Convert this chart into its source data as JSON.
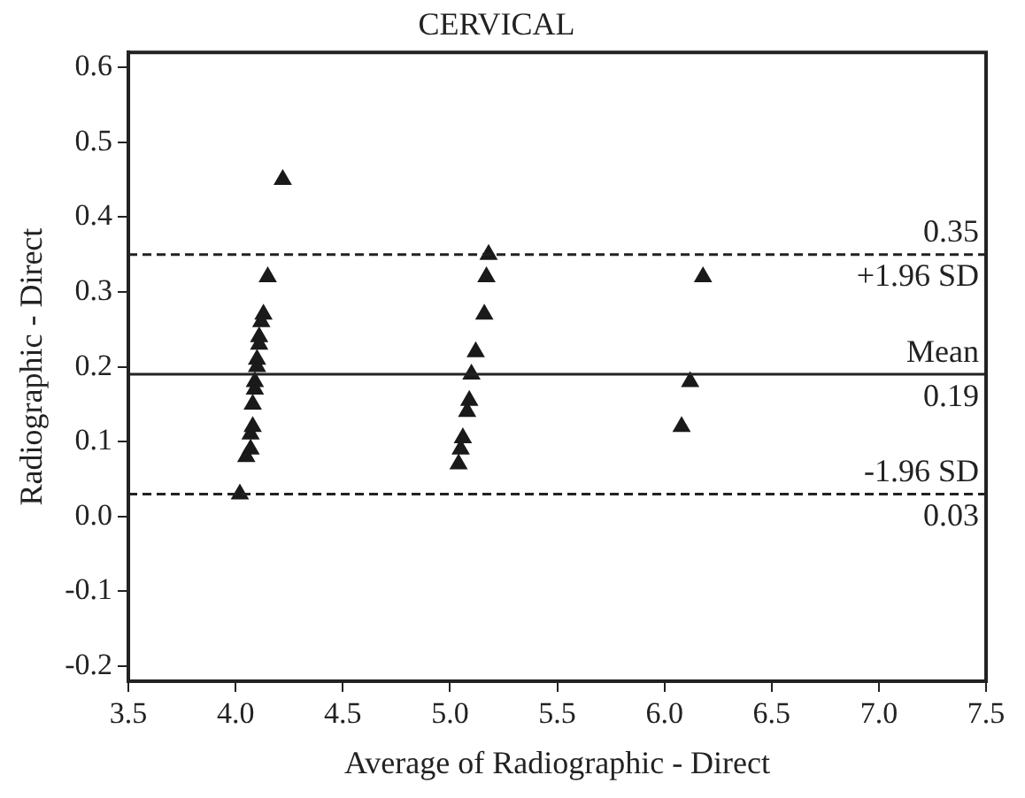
{
  "chart_data": {
    "type": "scatter",
    "title": "CERVICAL",
    "xlabel": "Average of Radiographic - Direct",
    "ylabel": "Radiographic - Direct",
    "series": [
      {
        "color": "#1a1a1a",
        "x": [
          4.22,
          4.15,
          4.13,
          4.12,
          4.11,
          4.11,
          4.1,
          4.1,
          4.09,
          4.09,
          4.08,
          4.08,
          4.07,
          4.07,
          4.05,
          4.02,
          5.18,
          5.17,
          5.16,
          5.12,
          5.1,
          5.09,
          5.08,
          5.06,
          5.05,
          5.04,
          6.18,
          6.12,
          6.08
        ],
        "values": [
          0.45,
          0.32,
          0.27,
          0.26,
          0.24,
          0.23,
          0.21,
          0.2,
          0.18,
          0.17,
          0.15,
          0.12,
          0.11,
          0.09,
          0.08,
          0.03,
          0.35,
          0.32,
          0.27,
          0.22,
          0.19,
          0.155,
          0.14,
          0.105,
          0.09,
          0.07,
          0.32,
          0.18,
          0.12
        ]
      }
    ],
    "marker": "triangle",
    "xlim": [
      3.5,
      7.5
    ],
    "xticks": [
      3.5,
      {
        "value": 4,
        "label": "4.0"
      },
      4.5,
      {
        "value": 5,
        "label": "5.0"
      },
      5.5,
      {
        "value": 6,
        "label": "6.0"
      },
      6.5,
      {
        "value": 7,
        "label": "7.0"
      },
      7.5
    ],
    "ylim": [
      -0.22,
      0.62
    ],
    "yticks": [
      -0.2,
      -0.1,
      {
        "value": 0,
        "label": "0.0"
      },
      0.1,
      0.2,
      0.3,
      0.4,
      0.5,
      0.6
    ],
    "ref_lines": [
      {
        "axis": "y",
        "value": 0.35,
        "label": "+1.96 SD",
        "line_style": "dashed"
      },
      {
        "axis": "y",
        "value": 0.19,
        "label": "Mean",
        "line_style": "solid"
      },
      {
        "axis": "y",
        "value": 0.03,
        "label": "-1.96 SD",
        "line_style": "dashed"
      }
    ],
    "annotations": [
      {
        "text": "0.35",
        "y": 0.35
      },
      {
        "text": "0.19",
        "y": 0.19
      },
      {
        "text": "0.03",
        "y": 0.03
      }
    ],
    "grid": false,
    "legend": false
  }
}
